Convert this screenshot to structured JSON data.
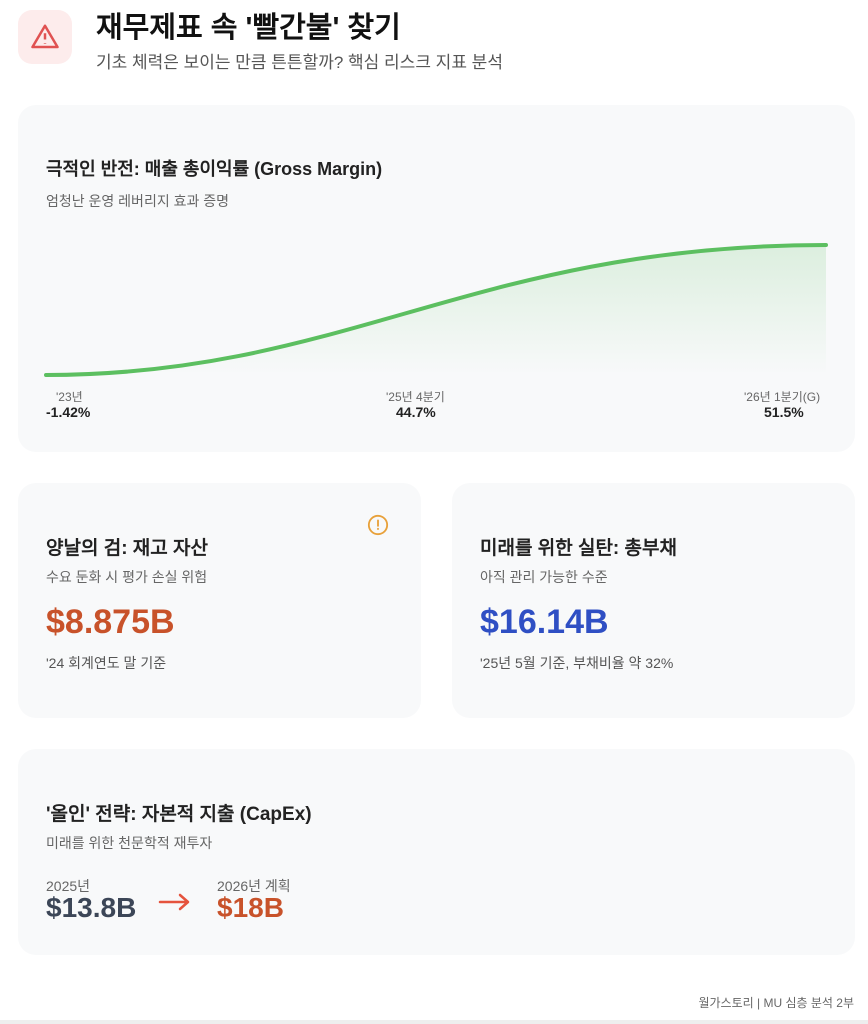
{
  "header": {
    "title": "재무제표 속 '빨간불' 찾기",
    "subtitle": "기초 체력은 보이는 만큼 튼튼할까? 핵심 리스크 지표 분석",
    "icon": "warning-triangle-icon"
  },
  "gross_margin": {
    "title": "극적인 반전: 매출 총이익률 (Gross Margin)",
    "subtitle": "엄청난 운영 레버리지 효과 증명"
  },
  "chart_data": {
    "type": "line",
    "categories": [
      "'23년",
      "'25년 4분기",
      "'26년 1분기(G)"
    ],
    "values": [
      -1.42,
      44.7,
      51.5
    ],
    "value_labels": [
      "-1.42%",
      "44.7%",
      "51.5%"
    ],
    "line_color": "#5cbf60",
    "area_fill": true,
    "grid": false,
    "axes": false
  },
  "inventory": {
    "title": "양날의 검: 재고 자산",
    "subtitle": "수요 둔화 시 평가 손실 위험",
    "value": "$8.875B",
    "note": "'24 회계연도 말 기준",
    "color": "#c8522a",
    "icon": "alert-circle-icon"
  },
  "debt": {
    "title": "미래를 위한 실탄: 총부채",
    "subtitle": "아직 관리 가능한 수준",
    "value": "$16.14B",
    "note": "'25년 5월 기준, 부채비율 약 32%",
    "color": "#2f4fc4"
  },
  "capex": {
    "title": "'올인' 전략: 자본적 지출 (CapEx)",
    "subtitle": "미래를 위한 천문학적 재투자",
    "from_label": "2025년",
    "from_value": "$13.8B",
    "to_label": "2026년 계획",
    "to_value": "$18B",
    "arrow_color": "#e5533d"
  },
  "footer": "월가스토리 | MU 심층 분석 2부"
}
